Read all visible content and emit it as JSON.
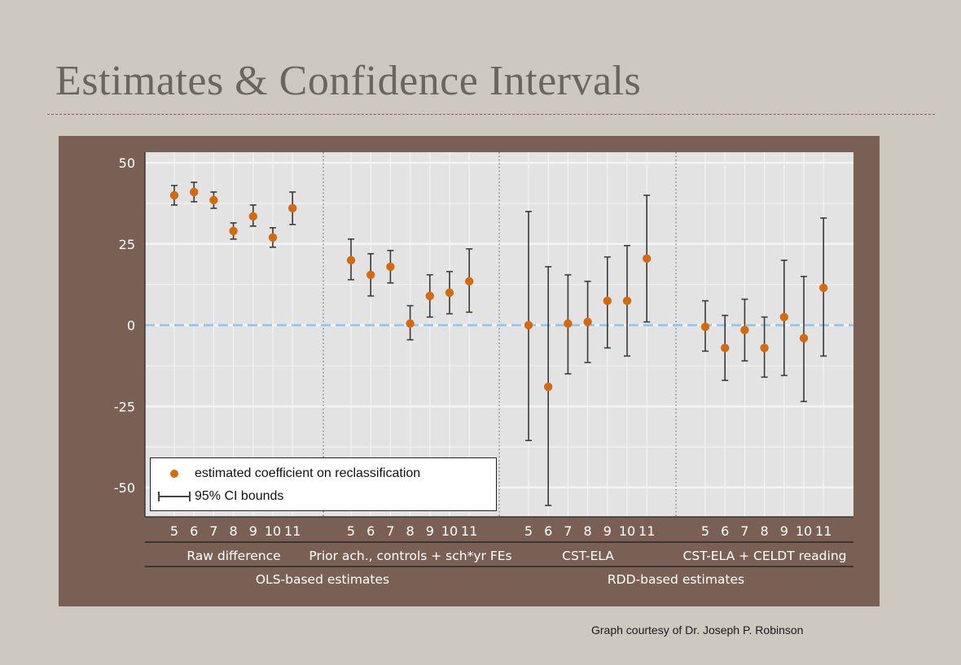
{
  "slide": {
    "title": "Estimates & Confidence Intervals",
    "credit": "Graph courtesy of Dr. Joseph P. Robinson"
  },
  "legend": {
    "point_label": "estimated coefficient on reclassification",
    "ci_label": "95% CI bounds",
    "placement": "bottom-left"
  },
  "colors": {
    "point": "#d46a0e",
    "error_bar": "#3a3a3a",
    "zero_line": "#8ec3ea",
    "plot_bg": "#e3e3e3",
    "grid": "#f4f4f4",
    "panel_bg": "#7a6054"
  },
  "chart_data": {
    "type": "scatter",
    "title": "",
    "xlabel": "",
    "ylabel": "",
    "ylim": [
      -58,
      53
    ],
    "yticks": [
      "50",
      "25",
      "0",
      "-25",
      "-50"
    ],
    "ytick_values": [
      50,
      25,
      0,
      -25,
      -50
    ],
    "grid": true,
    "reference_line": 0,
    "group_headers": [
      "OLS-based estimates",
      "RDD-based estimates"
    ],
    "panels": [
      {
        "name": "Raw difference",
        "header": "OLS-based estimates",
        "grades": [
          "5",
          "6",
          "7",
          "8",
          "9",
          "10",
          "11"
        ],
        "estimates": [
          40,
          41,
          38.5,
          29,
          33.5,
          27,
          36
        ],
        "lower": [
          37,
          38,
          36,
          26.5,
          30.5,
          24,
          31
        ],
        "upper": [
          43,
          44,
          41,
          31.5,
          37,
          30,
          41
        ]
      },
      {
        "name": "Prior ach., controls + sch*yr FEs",
        "header": "OLS-based estimates",
        "grades": [
          "5",
          "6",
          "7",
          "8",
          "9",
          "10",
          "11"
        ],
        "estimates": [
          20,
          15.5,
          18,
          0.5,
          9,
          10,
          13.5
        ],
        "lower": [
          14,
          9,
          13,
          -4.5,
          2.5,
          3.5,
          4
        ],
        "upper": [
          26.5,
          22,
          23,
          6,
          15.5,
          16.5,
          23.5
        ]
      },
      {
        "name": "CST-ELA",
        "header": "RDD-based estimates",
        "grades": [
          "5",
          "6",
          "7",
          "8",
          "9",
          "10",
          "11"
        ],
        "estimates": [
          0,
          -19,
          0.5,
          1,
          7.5,
          7.5,
          20.5
        ],
        "lower": [
          -35.5,
          -55.5,
          -15,
          -11.5,
          -7,
          -9.5,
          1
        ],
        "upper": [
          35,
          18,
          15.5,
          13.5,
          21,
          24.5,
          40
        ]
      },
      {
        "name": "CST-ELA + CELDT reading",
        "header": "RDD-based estimates",
        "grades": [
          "5",
          "6",
          "7",
          "8",
          "9",
          "10",
          "11"
        ],
        "estimates": [
          -0.5,
          -7,
          -1.5,
          -7,
          2.5,
          -4,
          11.5
        ],
        "lower": [
          -8,
          -17,
          -11,
          -16,
          -15.5,
          -23.5,
          -9.5
        ],
        "upper": [
          7.5,
          3,
          8,
          2.5,
          20,
          15,
          33
        ]
      }
    ]
  }
}
